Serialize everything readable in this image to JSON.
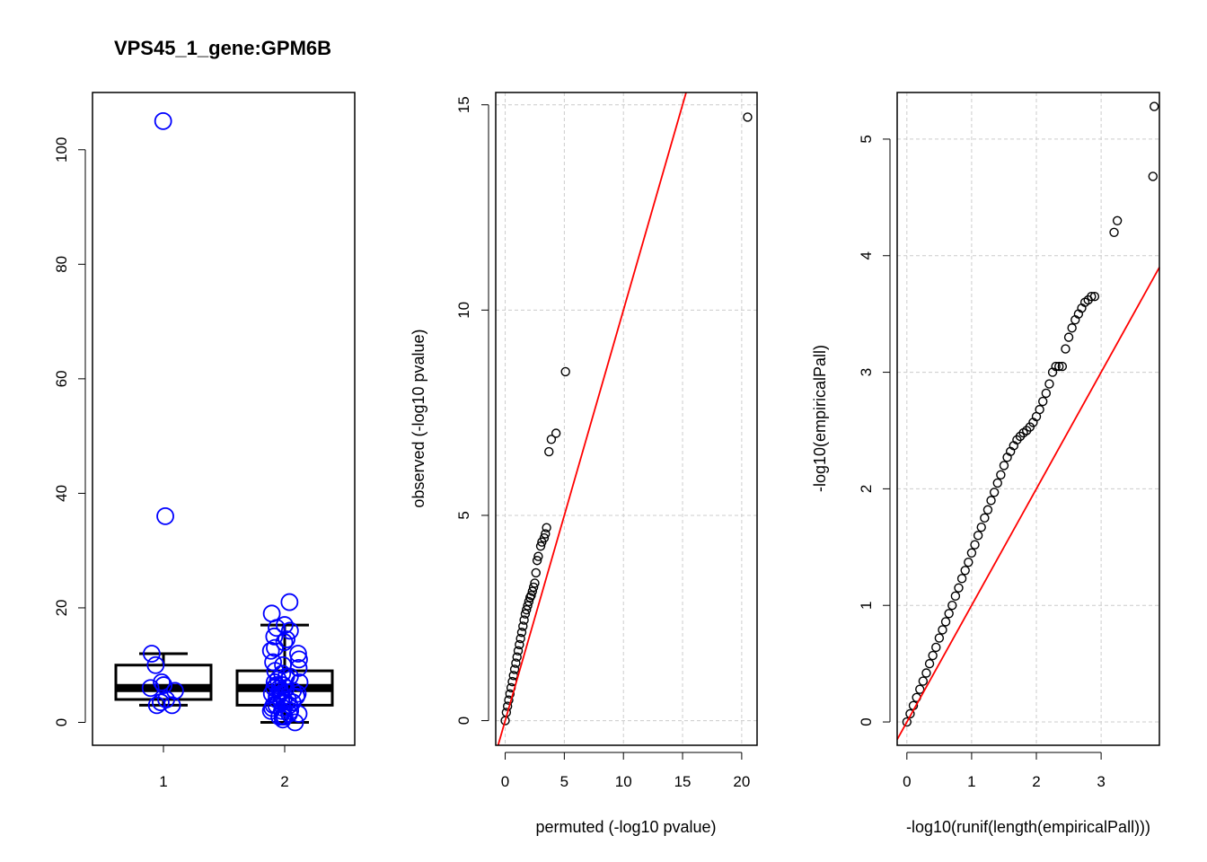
{
  "chart_data": [
    {
      "type": "box",
      "title": "VPS45_1_gene:GPM6B",
      "xlabel": "",
      "ylabel": "",
      "categories": [
        "1",
        "2"
      ],
      "x_tick_labels": [
        "1",
        "2"
      ],
      "y_tick_labels": [
        "0",
        "20",
        "40",
        "60",
        "80",
        "100"
      ],
      "y_ticks": [
        0,
        20,
        40,
        60,
        80,
        100
      ],
      "ylim": [
        -4,
        110
      ],
      "grid": false,
      "colors": {
        "box": "#000000",
        "points": "#0000ff"
      },
      "boxes": [
        {
          "group": "1",
          "whisker_low": 3,
          "q1": 4,
          "median": 6,
          "q3": 10,
          "whisker_high": 12
        },
        {
          "group": "2",
          "whisker_low": 0,
          "q1": 3,
          "median": 6,
          "q3": 9,
          "whisker_high": 17
        }
      ],
      "points": [
        {
          "group": "1",
          "values": [
            105,
            36,
            12,
            10,
            7,
            6.5,
            6,
            5.5,
            4,
            3.5,
            3,
            3
          ]
        },
        {
          "group": "2",
          "values": [
            21,
            19,
            17,
            16.5,
            16,
            15,
            14.5,
            14,
            13,
            12.5,
            12,
            11,
            10.5,
            10,
            9.5,
            9,
            8.5,
            8,
            8,
            7.5,
            7,
            7,
            6.5,
            6.5,
            6,
            6,
            6,
            5.5,
            5.5,
            5,
            5,
            5,
            4.5,
            4.5,
            4,
            4,
            4,
            3.5,
            3.5,
            3,
            3,
            3,
            2.5,
            2.5,
            2,
            2,
            2,
            1.5,
            1.5,
            1,
            1,
            1,
            0.5,
            0
          ]
        }
      ]
    },
    {
      "type": "scatter",
      "title": "",
      "xlabel": "permuted (-log10 pvalue)",
      "ylabel": "observed (-log10 pvalue)",
      "x_tick_labels": [
        "0",
        "5",
        "10",
        "15",
        "20"
      ],
      "x_ticks": [
        0,
        5,
        10,
        15,
        20
      ],
      "y_tick_labels": [
        "0",
        "5",
        "10",
        "15"
      ],
      "y_ticks": [
        0,
        5,
        10,
        15
      ],
      "xlim": [
        -0.8,
        21.3
      ],
      "ylim": [
        -0.6,
        15.3
      ],
      "grid": true,
      "reference_line": {
        "slope": 1,
        "intercept": 0,
        "color": "#ff0000"
      },
      "points": {
        "x": [
          0,
          0.1,
          0.2,
          0.3,
          0.4,
          0.5,
          0.6,
          0.7,
          0.8,
          0.9,
          1.0,
          1.1,
          1.2,
          1.3,
          1.4,
          1.5,
          1.6,
          1.7,
          1.8,
          1.9,
          2.0,
          2.1,
          2.2,
          2.3,
          2.4,
          2.5,
          2.6,
          2.7,
          2.8,
          3.0,
          3.1,
          3.3,
          3.4,
          3.5,
          3.7,
          3.9,
          4.3,
          5.1,
          20.5
        ],
        "y": [
          0,
          0.2,
          0.35,
          0.5,
          0.65,
          0.8,
          0.95,
          1.1,
          1.25,
          1.4,
          1.55,
          1.7,
          1.85,
          2.0,
          2.15,
          2.3,
          2.45,
          2.6,
          2.7,
          2.8,
          2.9,
          3.0,
          3.05,
          3.15,
          3.25,
          3.35,
          3.6,
          3.9,
          4.0,
          4.25,
          4.35,
          4.45,
          4.55,
          4.7,
          6.55,
          6.85,
          7.0,
          8.5,
          14.7
        ]
      }
    },
    {
      "type": "scatter",
      "title": "",
      "xlabel": "-log10(runif(length(empiricalPall)))",
      "ylabel": "-log10(empiricalPall)",
      "x_tick_labels": [
        "0",
        "1",
        "2",
        "3"
      ],
      "x_ticks": [
        0,
        1,
        2,
        3
      ],
      "y_tick_labels": [
        "0",
        "1",
        "2",
        "3",
        "4",
        "5"
      ],
      "y_ticks": [
        0,
        1,
        2,
        3,
        4,
        5
      ],
      "xlim": [
        -0.15,
        3.9
      ],
      "ylim": [
        -0.2,
        5.4
      ],
      "grid": true,
      "reference_line": {
        "slope": 1,
        "intercept": 0,
        "color": "#ff0000"
      },
      "points": {
        "x": [
          0,
          0.05,
          0.1,
          0.15,
          0.2,
          0.25,
          0.3,
          0.35,
          0.4,
          0.45,
          0.5,
          0.55,
          0.6,
          0.65,
          0.7,
          0.75,
          0.8,
          0.85,
          0.9,
          0.95,
          1.0,
          1.05,
          1.1,
          1.15,
          1.2,
          1.25,
          1.3,
          1.35,
          1.4,
          1.45,
          1.5,
          1.55,
          1.6,
          1.65,
          1.7,
          1.75,
          1.8,
          1.85,
          1.9,
          1.95,
          2.0,
          2.05,
          2.1,
          2.15,
          2.2,
          2.25,
          2.3,
          2.35,
          2.4,
          2.45,
          2.5,
          2.55,
          2.6,
          2.65,
          2.7,
          2.75,
          2.8,
          2.85,
          2.9,
          3.2,
          3.25,
          3.8,
          3.82
        ],
        "y": [
          0,
          0.07,
          0.14,
          0.21,
          0.28,
          0.35,
          0.42,
          0.5,
          0.57,
          0.64,
          0.72,
          0.79,
          0.86,
          0.93,
          1.0,
          1.08,
          1.15,
          1.23,
          1.3,
          1.37,
          1.45,
          1.52,
          1.6,
          1.67,
          1.75,
          1.82,
          1.9,
          1.97,
          2.05,
          2.12,
          2.2,
          2.27,
          2.32,
          2.37,
          2.42,
          2.45,
          2.48,
          2.5,
          2.53,
          2.57,
          2.62,
          2.68,
          2.75,
          2.82,
          2.9,
          3.0,
          3.05,
          3.05,
          3.05,
          3.2,
          3.3,
          3.38,
          3.45,
          3.5,
          3.55,
          3.6,
          3.62,
          3.65,
          3.65,
          4.2,
          4.3,
          4.68,
          5.28
        ]
      }
    }
  ]
}
